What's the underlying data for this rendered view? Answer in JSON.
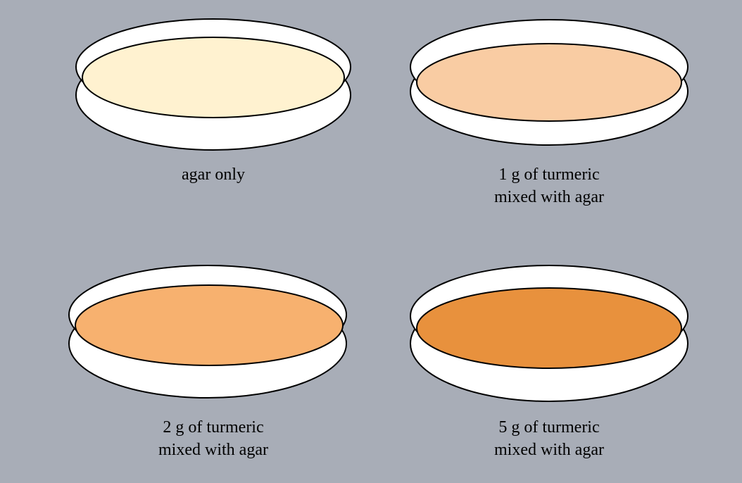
{
  "background_color": "#a8adb7",
  "dishes": [
    {
      "caption_lines": [
        "agar only"
      ],
      "agar_color": "#fff2d0"
    },
    {
      "caption_lines": [
        "1 g of turmeric",
        "mixed with agar"
      ],
      "agar_color": "#f9cca3"
    },
    {
      "caption_lines": [
        "2 g of turmeric",
        "mixed with agar"
      ],
      "agar_color": "#f7b16f"
    },
    {
      "caption_lines": [
        "5 g of turmeric",
        "mixed with agar"
      ],
      "agar_color": "#e8913d"
    }
  ]
}
